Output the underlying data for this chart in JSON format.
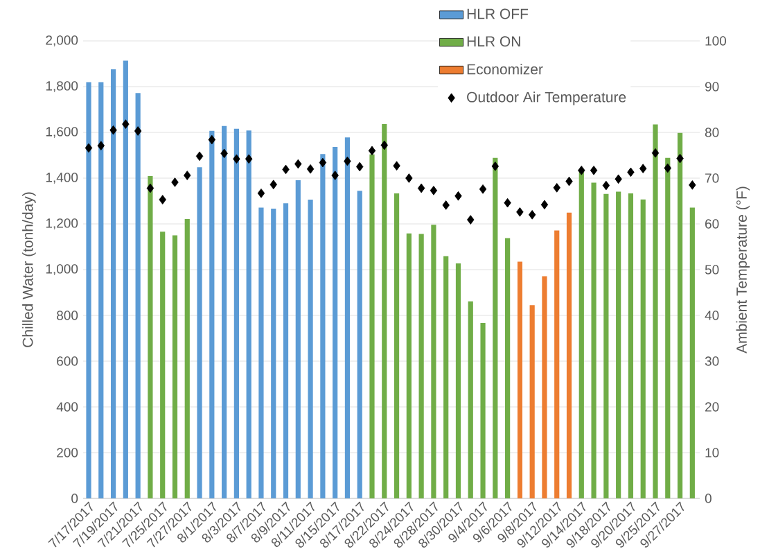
{
  "chart_data": {
    "type": "bar",
    "ylabel": "Chilled Water (tonh/day)",
    "y2label": "Ambient Temperature (°F)",
    "categories": [
      "7/17/2017",
      null,
      "7/19/2017",
      null,
      "7/21/2017",
      null,
      "7/25/2017",
      null,
      "7/27/2017",
      null,
      "8/1/2017",
      null,
      "8/3/2017",
      null,
      "8/7/2017",
      null,
      "8/9/2017",
      null,
      "8/11/2017",
      null,
      "8/15/2017",
      null,
      "8/17/2017",
      null,
      "8/22/2017",
      null,
      "8/24/2017",
      null,
      "8/28/2017",
      null,
      "8/30/2017",
      null,
      "9/4/2017",
      null,
      "9/6/2017",
      null,
      "9/8/2017",
      null,
      "9/12/2017",
      null,
      "9/14/2017",
      null,
      "9/18/2017",
      null,
      "9/20/2017",
      null,
      "9/25/2017",
      null,
      "9/27/2017",
      null
    ],
    "series": [
      {
        "name": "HLR OFF",
        "color": "#5b9bd5",
        "values": [
          1820,
          1820,
          1876,
          1914,
          1772,
          null,
          null,
          null,
          null,
          1448,
          1607,
          1628,
          1616,
          1608,
          1271,
          1267,
          1290,
          1391,
          1306,
          1505,
          1536,
          1578,
          1345,
          null,
          null,
          null,
          null,
          null,
          null,
          null,
          null,
          null,
          null,
          null,
          null,
          null,
          null,
          null,
          null,
          null,
          null,
          null,
          null,
          null,
          null,
          null,
          null,
          null,
          null,
          null
        ]
      },
      {
        "name": "HLR ON",
        "color": "#70ad47",
        "values": [
          null,
          null,
          null,
          null,
          null,
          1409,
          1166,
          1150,
          1221,
          null,
          null,
          null,
          null,
          null,
          null,
          null,
          null,
          null,
          null,
          null,
          null,
          null,
          null,
          1504,
          1636,
          1333,
          1158,
          1156,
          1196,
          1059,
          1027,
          861,
          767,
          1489,
          1138,
          null,
          null,
          null,
          null,
          null,
          1431,
          1380,
          1331,
          1341,
          1333,
          1307,
          1635,
          1489,
          1598,
          1271
        ]
      },
      {
        "name": "Economizer",
        "color": "#ed7d31",
        "values": [
          null,
          null,
          null,
          null,
          null,
          null,
          null,
          null,
          null,
          null,
          null,
          null,
          null,
          null,
          null,
          null,
          null,
          null,
          null,
          null,
          null,
          null,
          null,
          null,
          null,
          null,
          null,
          null,
          null,
          null,
          null,
          null,
          null,
          null,
          null,
          1035,
          845,
          971,
          1171,
          1249,
          null,
          null,
          null,
          null,
          null,
          null,
          null,
          null,
          null,
          null
        ]
      },
      {
        "name": "Outdoor Air Temperature",
        "type": "scatter",
        "axis": "y2",
        "marker": "diamond",
        "color": "#000000",
        "values": [
          76.6,
          77.1,
          80.5,
          81.8,
          80.3,
          67.8,
          65.3,
          69.1,
          70.6,
          74.8,
          78.4,
          75.4,
          74.2,
          74.2,
          66.7,
          68.6,
          71.9,
          73.1,
          72.0,
          73.4,
          70.6,
          73.7,
          72.5,
          76.0,
          77.2,
          72.7,
          70.0,
          67.8,
          67.3,
          64.1,
          66.1,
          60.9,
          67.6,
          72.6,
          64.6,
          62.6,
          62.0,
          64.2,
          67.9,
          69.3,
          71.7,
          71.7,
          68.4,
          69.8,
          71.3,
          72.1,
          75.5,
          72.2,
          74.3,
          68.5
        ]
      }
    ],
    "ylim": [
      0,
      2000
    ],
    "yticks": [
      0,
      200,
      400,
      600,
      800,
      {
        "value": 1000,
        "label": "1,000"
      },
      {
        "value": 1200,
        "label": "1,200"
      },
      {
        "value": 1400,
        "label": "1,400"
      },
      {
        "value": 1600,
        "label": "1,600"
      },
      {
        "value": 1800,
        "label": "1,800"
      },
      {
        "value": 2000,
        "label": "2,000"
      }
    ],
    "y2lim": [
      0,
      100
    ],
    "y2ticks": [
      0,
      10,
      20,
      30,
      40,
      50,
      60,
      70,
      80,
      90,
      100
    ],
    "grid": "y",
    "legend": "top"
  }
}
